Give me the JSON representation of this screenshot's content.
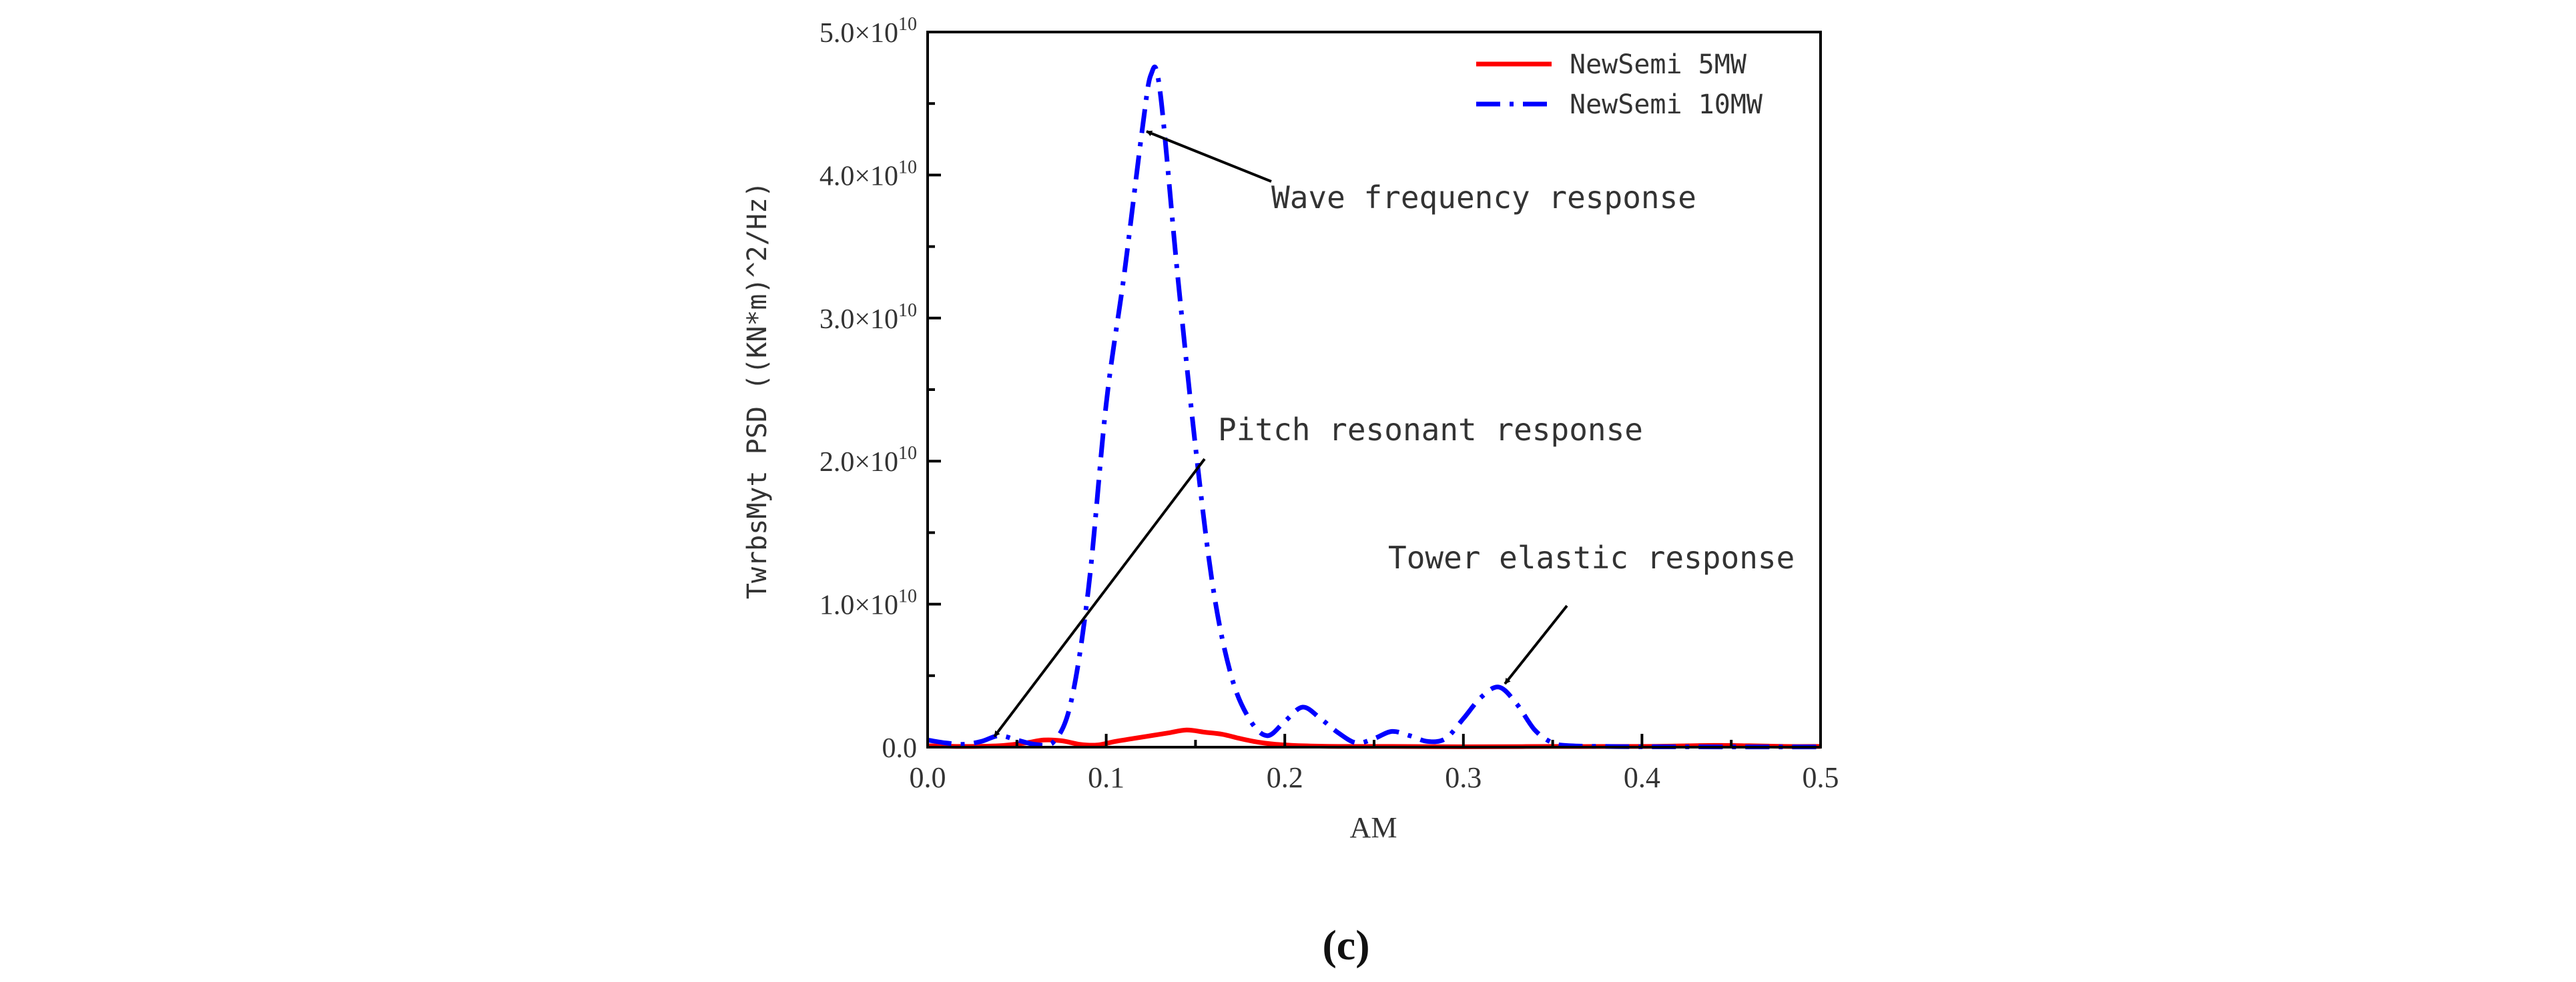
{
  "chart_data": {
    "type": "line",
    "xlabel": "AM",
    "ylabel": "TwrbsMyt PSD ((KN*m)^2/Hz)",
    "xlim": [
      0.0,
      0.5
    ],
    "ylim": [
      0,
      50000000000.0
    ],
    "x_ticks": [
      0.0,
      0.1,
      0.2,
      0.3,
      0.4,
      0.5
    ],
    "x_tick_labels": [
      "0.0",
      "0.1",
      "0.2",
      "0.3",
      "0.4",
      "0.5"
    ],
    "y_ticks": [
      0,
      10000000000.0,
      20000000000.0,
      30000000000.0,
      40000000000.0,
      50000000000.0
    ],
    "y_tick_labels": [
      {
        "mantissa": "0.0",
        "times": "",
        "base": "",
        "exp": ""
      },
      {
        "mantissa": "1.0",
        "times": "×",
        "base": "10",
        "exp": "10"
      },
      {
        "mantissa": "2.0",
        "times": "×",
        "base": "10",
        "exp": "10"
      },
      {
        "mantissa": "3.0",
        "times": "×",
        "base": "10",
        "exp": "10"
      },
      {
        "mantissa": "4.0",
        "times": "×",
        "base": "10",
        "exp": "10"
      },
      {
        "mantissa": "5.0",
        "times": "×",
        "base": "10",
        "exp": "10"
      }
    ],
    "legend_position": "top-right",
    "series": [
      {
        "name": "NewSemi 5MW",
        "color": "#ff0000",
        "style": "solid",
        "x": [
          0.0,
          0.02,
          0.04,
          0.055,
          0.065,
          0.075,
          0.085,
          0.095,
          0.105,
          0.115,
          0.125,
          0.135,
          0.145,
          0.155,
          0.165,
          0.175,
          0.185,
          0.195,
          0.21,
          0.23,
          0.26,
          0.3,
          0.35,
          0.4,
          0.44,
          0.46,
          0.48,
          0.5
        ],
        "y": [
          100000000.0,
          50000000.0,
          100000000.0,
          300000000.0,
          500000000.0,
          450000000.0,
          200000000.0,
          150000000.0,
          400000000.0,
          600000000.0,
          800000000.0,
          1000000000.0,
          1200000000.0,
          1050000000.0,
          900000000.0,
          600000000.0,
          350000000.0,
          200000000.0,
          100000000.0,
          50000000.0,
          50000000.0,
          30000000.0,
          50000000.0,
          50000000.0,
          120000000.0,
          100000000.0,
          50000000.0,
          50000000.0
        ]
      },
      {
        "name": "NewSemi 10MW",
        "color": "#0000ff",
        "style": "dashdot",
        "x": [
          0.0,
          0.01,
          0.02,
          0.03,
          0.04,
          0.05,
          0.06,
          0.07,
          0.08,
          0.09,
          0.1,
          0.11,
          0.12,
          0.125,
          0.13,
          0.14,
          0.15,
          0.16,
          0.17,
          0.18,
          0.19,
          0.2,
          0.21,
          0.22,
          0.23,
          0.24,
          0.25,
          0.26,
          0.27,
          0.28,
          0.29,
          0.3,
          0.31,
          0.32,
          0.33,
          0.34,
          0.35,
          0.36,
          0.38,
          0.4,
          0.45,
          0.5
        ],
        "y": [
          500000000.0,
          300000000.0,
          200000000.0,
          400000000.0,
          800000000.0,
          500000000.0,
          200000000.0,
          300000000.0,
          3000000000.0,
          11000000000.0,
          24000000000.0,
          33000000000.0,
          43000000000.0,
          47000000000.0,
          46000000000.0,
          33000000000.0,
          21000000000.0,
          11000000000.0,
          5000000000.0,
          2000000000.0,
          800000000.0,
          1800000000.0,
          2800000000.0,
          2000000000.0,
          1000000000.0,
          300000000.0,
          600000000.0,
          1100000000.0,
          800000000.0,
          400000000.0,
          600000000.0,
          2000000000.0,
          3500000000.0,
          4200000000.0,
          3000000000.0,
          1200000000.0,
          300000000.0,
          100000000.0,
          50000000.0,
          30000000.0,
          20000000.0,
          20000000.0
        ]
      }
    ],
    "annotations": [
      {
        "text": "Wave frequency response",
        "arrow_to": [
          0.125,
          43000000000.0
        ]
      },
      {
        "text": "Pitch resonant response",
        "arrow_to": [
          0.035,
          800000000.0
        ]
      },
      {
        "text": "Tower elastic response",
        "arrow_to": [
          0.32,
          4500000000.0
        ]
      }
    ],
    "panel_label": "(c)"
  }
}
